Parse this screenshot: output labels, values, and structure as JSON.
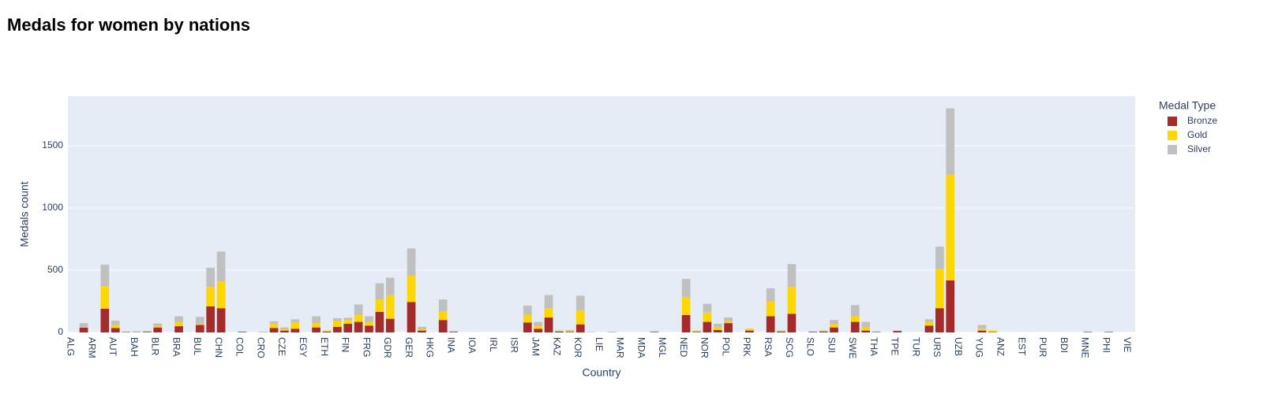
{
  "chart_data": {
    "type": "stacked_bar",
    "title": "Medals for women by nations",
    "x_label": "Country",
    "y_label": "Medals count",
    "legend_title": "Medal Type",
    "legend": "top-right",
    "grid": true,
    "ylim": [
      0,
      1899
    ],
    "yticks": [
      0,
      500,
      1000,
      1500
    ],
    "categories": [
      "ALG",
      null,
      "ARM",
      null,
      "AUT",
      null,
      "BAH",
      null,
      "BLR",
      null,
      "BRA",
      null,
      "BUL",
      null,
      "CHN",
      null,
      "COL",
      null,
      "CRO",
      null,
      "CZE",
      null,
      "EGY",
      null,
      "ETH",
      null,
      "FIN",
      null,
      "FRG",
      null,
      "GDR",
      null,
      "GER",
      null,
      "HKG",
      null,
      "INA",
      null,
      "IOA",
      null,
      "IRL",
      null,
      "ISR",
      null,
      "JAM",
      null,
      "KAZ",
      null,
      "KOR",
      null,
      "LIE",
      null,
      "MAR",
      null,
      "MDA",
      null,
      "MGL",
      null,
      "NED",
      null,
      "NOR",
      null,
      "POL",
      null,
      "PRK",
      null,
      "RSA",
      null,
      "SCG",
      null,
      "SLO",
      null,
      "SUI",
      null,
      "SWE",
      null,
      "THA",
      null,
      "TPE",
      null,
      "TUR",
      null,
      "URS",
      null,
      "UZB",
      null,
      "YUG",
      null,
      "ANZ",
      null,
      "EST",
      null,
      "PUR",
      null,
      "BDI",
      null,
      "MNE",
      null,
      "PHI",
      null,
      "VIE"
    ],
    "series": [
      {
        "name": "Bronze",
        "color": "#a52a2a",
        "values": [
          0,
          38,
          0,
          190,
          35,
          3,
          2,
          5,
          40,
          0,
          50,
          0,
          60,
          210,
          195,
          0,
          5,
          0,
          2,
          35,
          15,
          30,
          0,
          40,
          7,
          45,
          70,
          85,
          55,
          165,
          110,
          0,
          245,
          15,
          0,
          100,
          5,
          0,
          0,
          0,
          0,
          0,
          0,
          80,
          30,
          120,
          8,
          5,
          65,
          0,
          0,
          2,
          0,
          0,
          0,
          4,
          0,
          0,
          140,
          5,
          85,
          20,
          75,
          0,
          15,
          0,
          130,
          8,
          150,
          0,
          5,
          8,
          40,
          0,
          85,
          15,
          3,
          0,
          12,
          0,
          0,
          55,
          195,
          418,
          0,
          0,
          15,
          3,
          0,
          0,
          0,
          0,
          0,
          0,
          0,
          0,
          3,
          0,
          3,
          0,
          0
        ]
      },
      {
        "name": "Gold",
        "color": "#ffd700",
        "values": [
          0,
          2,
          0,
          183,
          25,
          1,
          5,
          2,
          10,
          0,
          35,
          0,
          10,
          155,
          215,
          0,
          1,
          0,
          0,
          35,
          10,
          50,
          0,
          35,
          5,
          45,
          30,
          55,
          30,
          100,
          190,
          0,
          210,
          10,
          0,
          70,
          3,
          0,
          0,
          0,
          0,
          0,
          0,
          60,
          20,
          75,
          3,
          5,
          110,
          0,
          0,
          0,
          0,
          0,
          0,
          2,
          0,
          0,
          145,
          5,
          75,
          25,
          15,
          0,
          10,
          0,
          120,
          3,
          215,
          0,
          0,
          3,
          25,
          0,
          45,
          25,
          3,
          0,
          0,
          0,
          0,
          30,
          315,
          847,
          0,
          0,
          15,
          10,
          0,
          0,
          0,
          0,
          0,
          0,
          0,
          0,
          2,
          0,
          2,
          0,
          0
        ]
      },
      {
        "name": "Silver",
        "color": "#c0c0c0",
        "values": [
          0,
          35,
          0,
          172,
          35,
          2,
          3,
          5,
          22,
          0,
          45,
          0,
          55,
          155,
          240,
          0,
          2,
          0,
          2,
          20,
          15,
          25,
          0,
          55,
          3,
          25,
          18,
          85,
          45,
          130,
          140,
          0,
          220,
          20,
          0,
          95,
          4,
          0,
          0,
          0,
          0,
          0,
          0,
          75,
          35,
          105,
          4,
          10,
          120,
          3,
          0,
          0,
          0,
          0,
          0,
          4,
          0,
          0,
          145,
          5,
          70,
          25,
          30,
          0,
          5,
          0,
          105,
          4,
          185,
          0,
          3,
          4,
          35,
          0,
          90,
          45,
          2,
          0,
          3,
          0,
          0,
          20,
          180,
          535,
          0,
          0,
          30,
          2,
          0,
          0,
          0,
          0,
          0,
          0,
          0,
          0,
          3,
          0,
          3,
          0,
          0
        ]
      }
    ]
  }
}
